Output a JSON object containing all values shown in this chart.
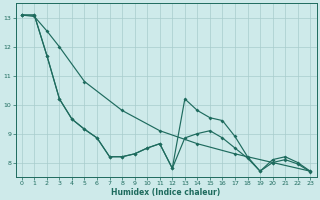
{
  "xlabel": "Humidex (Indice chaleur)",
  "background_color": "#ceeaea",
  "grid_color": "#a8cccc",
  "line_color": "#1e6b5e",
  "xlim": [
    -0.5,
    23.5
  ],
  "ylim": [
    7.5,
    13.5
  ],
  "yticks": [
    8,
    9,
    10,
    11,
    12,
    13
  ],
  "xticks": [
    0,
    1,
    2,
    3,
    4,
    5,
    6,
    7,
    8,
    9,
    10,
    11,
    12,
    13,
    14,
    15,
    16,
    17,
    18,
    19,
    20,
    21,
    22,
    23
  ],
  "series1_x": [
    0,
    1,
    2,
    3,
    4,
    5,
    6,
    7,
    8,
    9,
    10,
    11,
    12,
    13,
    14,
    15,
    16,
    17,
    18,
    19,
    20,
    21,
    22,
    23
  ],
  "series1_y": [
    13.1,
    13.1,
    11.7,
    10.2,
    9.5,
    9.15,
    8.85,
    8.2,
    8.2,
    8.3,
    8.5,
    8.65,
    7.8,
    10.2,
    9.8,
    9.55,
    9.45,
    8.9,
    8.2,
    7.7,
    8.1,
    8.2,
    8.0,
    7.7
  ],
  "series2_x": [
    0,
    1,
    2,
    3,
    4,
    5,
    6,
    7,
    8,
    9,
    10,
    11,
    12,
    13,
    14,
    15,
    16,
    17,
    18,
    19,
    20,
    21,
    22,
    23
  ],
  "series2_y": [
    13.1,
    13.1,
    11.7,
    10.2,
    9.5,
    9.15,
    8.85,
    8.2,
    8.2,
    8.3,
    8.5,
    8.65,
    7.8,
    8.85,
    9.0,
    9.1,
    8.85,
    8.5,
    8.15,
    7.7,
    8.0,
    8.1,
    7.95,
    7.68
  ],
  "series3_x": [
    0,
    1,
    2,
    3,
    5,
    8,
    11,
    14,
    17,
    20,
    23
  ],
  "series3_y": [
    13.1,
    13.05,
    12.55,
    12.0,
    10.8,
    9.8,
    9.1,
    8.65,
    8.3,
    8.0,
    7.7
  ]
}
